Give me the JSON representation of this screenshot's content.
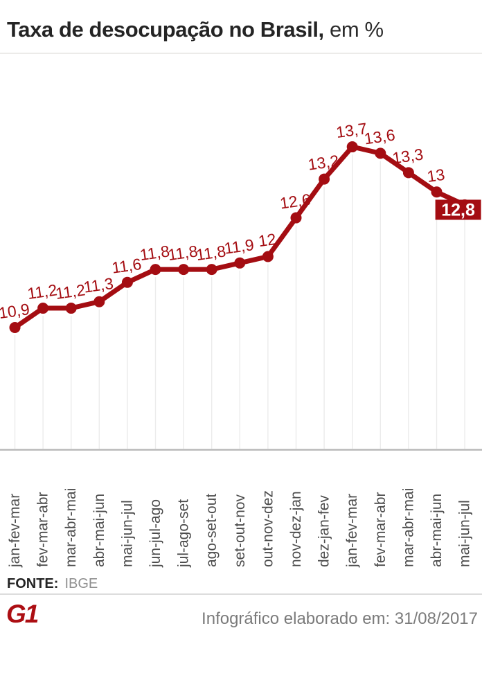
{
  "header": {
    "title_bold": "Taxa de desocupação no Brasil,",
    "title_rest": " em %"
  },
  "chart_data": {
    "type": "line",
    "title": "Taxa de desocupação no Brasil, em %",
    "unit": "%",
    "categories": [
      "jan-fev-mar",
      "fev-mar-abr",
      "mar-abr-mai",
      "abr-mai-jun",
      "mai-jun-jul",
      "jun-jul-ago",
      "jul-ago-set",
      "ago-set-out",
      "set-out-nov",
      "out-nov-dez",
      "nov-dez-jan",
      "dez-jan-fev",
      "jan-fev-mar",
      "fev-mar-abr",
      "mar-abr-mai",
      "abr-mai-jun",
      "mai-jun-jul"
    ],
    "values": [
      10.9,
      11.2,
      11.2,
      11.3,
      11.6,
      11.8,
      11.8,
      11.8,
      11.9,
      12,
      12.6,
      13.2,
      13.7,
      13.6,
      13.3,
      13,
      12.8
    ],
    "point_labels": [
      "10,9",
      "11,2",
      "11,2",
      "11,3",
      "11,6",
      "11,8",
      "11,8",
      "11,8",
      "11,9",
      "12",
      "12,6",
      "13,2",
      "13,7",
      "13,6",
      "13,3",
      "13",
      "12,8"
    ],
    "highlighted_last_label": "12,8",
    "ylim": [
      10.9,
      13.7
    ],
    "grid": "vertical-only",
    "legend": "none",
    "line_color": "#a40d12",
    "label_color": "#a40d12",
    "highlight_box_color": "#a40d12",
    "highlight_text_color": "#ffffff",
    "gridline_color": "#ebebeb",
    "axis_color": "#b8b8b8",
    "category_color": "#4c4c4c"
  },
  "source": {
    "label": "FONTE:",
    "value": "IBGE"
  },
  "footer": {
    "logo_text": "G1",
    "logo_color": "#ac0e13",
    "credit": "Infográfico elaborado em: 31/08/2017"
  }
}
